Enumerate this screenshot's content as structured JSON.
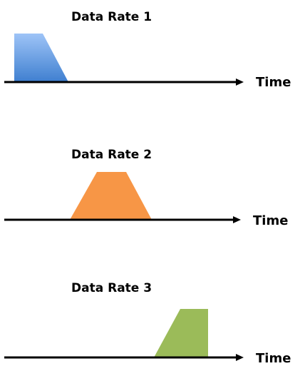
{
  "panels": [
    {
      "title": "Data Rate 1",
      "axis_label": "Time",
      "shape_color": "#4a86d8",
      "shape_color_light": "#9ec4f7"
    },
    {
      "title": "Data Rate 2",
      "axis_label": "Time",
      "shape_color": "#f79646"
    },
    {
      "title": "Data Rate 3",
      "axis_label": "Time",
      "shape_color": "#9bbb59"
    }
  ]
}
